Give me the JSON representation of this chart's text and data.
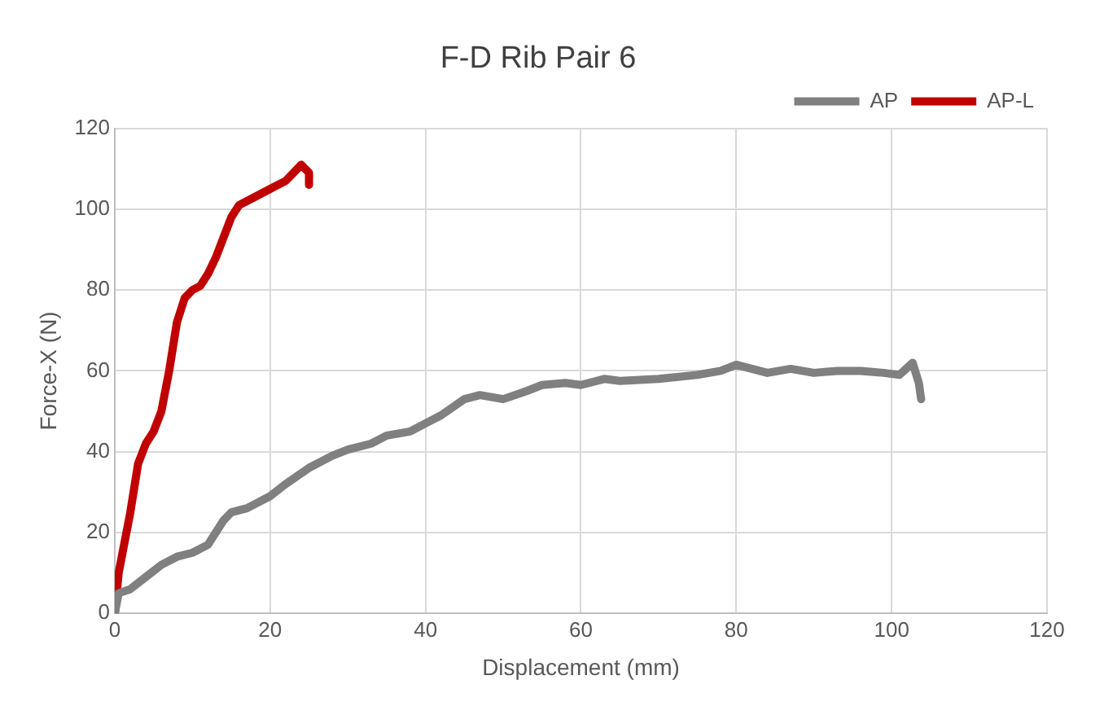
{
  "chart_data": {
    "type": "line",
    "title": "F-D Rib Pair 6",
    "xlabel": "Displacement (mm)",
    "ylabel": "Force-X (N)",
    "xlim": [
      0,
      120
    ],
    "xticks": [
      0,
      20,
      40,
      60,
      80,
      100,
      120
    ],
    "ylim": [
      0,
      120
    ],
    "yticks": [
      0,
      20,
      40,
      60,
      80,
      100,
      120
    ],
    "grid": true,
    "legend": "top right",
    "marker": "none",
    "line_style": "solid",
    "series": [
      {
        "name": "AP",
        "color": "#808080",
        "x": [
          0,
          0.5,
          2,
          4,
          6,
          8,
          10,
          12,
          14,
          15,
          17,
          20,
          22,
          25,
          28,
          30,
          33,
          35,
          38,
          40,
          42,
          45,
          47,
          50,
          53,
          55,
          58,
          60,
          63,
          65,
          70,
          75,
          78,
          80,
          82,
          84,
          87,
          90,
          93,
          96,
          99,
          101,
          102.7,
          103.5,
          103.8
        ],
        "values": [
          0,
          5,
          6,
          9,
          12,
          14,
          15,
          17,
          23,
          25,
          26,
          29,
          32,
          36,
          39,
          40.5,
          42,
          44,
          45,
          47,
          49,
          53,
          54,
          53,
          55,
          56.5,
          57,
          56.5,
          58,
          57.5,
          58,
          59,
          60,
          61.5,
          60.5,
          59.5,
          60.5,
          59.5,
          60,
          60,
          59.5,
          59,
          62,
          57,
          53
        ]
      },
      {
        "name": "AP-L",
        "color": "#c00000",
        "x": [
          0,
          0.5,
          2,
          3,
          4,
          5,
          6,
          7,
          8,
          9,
          10,
          11,
          12,
          13,
          14,
          15,
          16,
          18,
          20,
          22,
          23,
          24,
          25,
          25
        ],
        "values": [
          0,
          10,
          25,
          37,
          42,
          45,
          50,
          60,
          72,
          78,
          80,
          81,
          84,
          88,
          93,
          98,
          101,
          103,
          105,
          107,
          109,
          111,
          109,
          106
        ]
      }
    ]
  }
}
